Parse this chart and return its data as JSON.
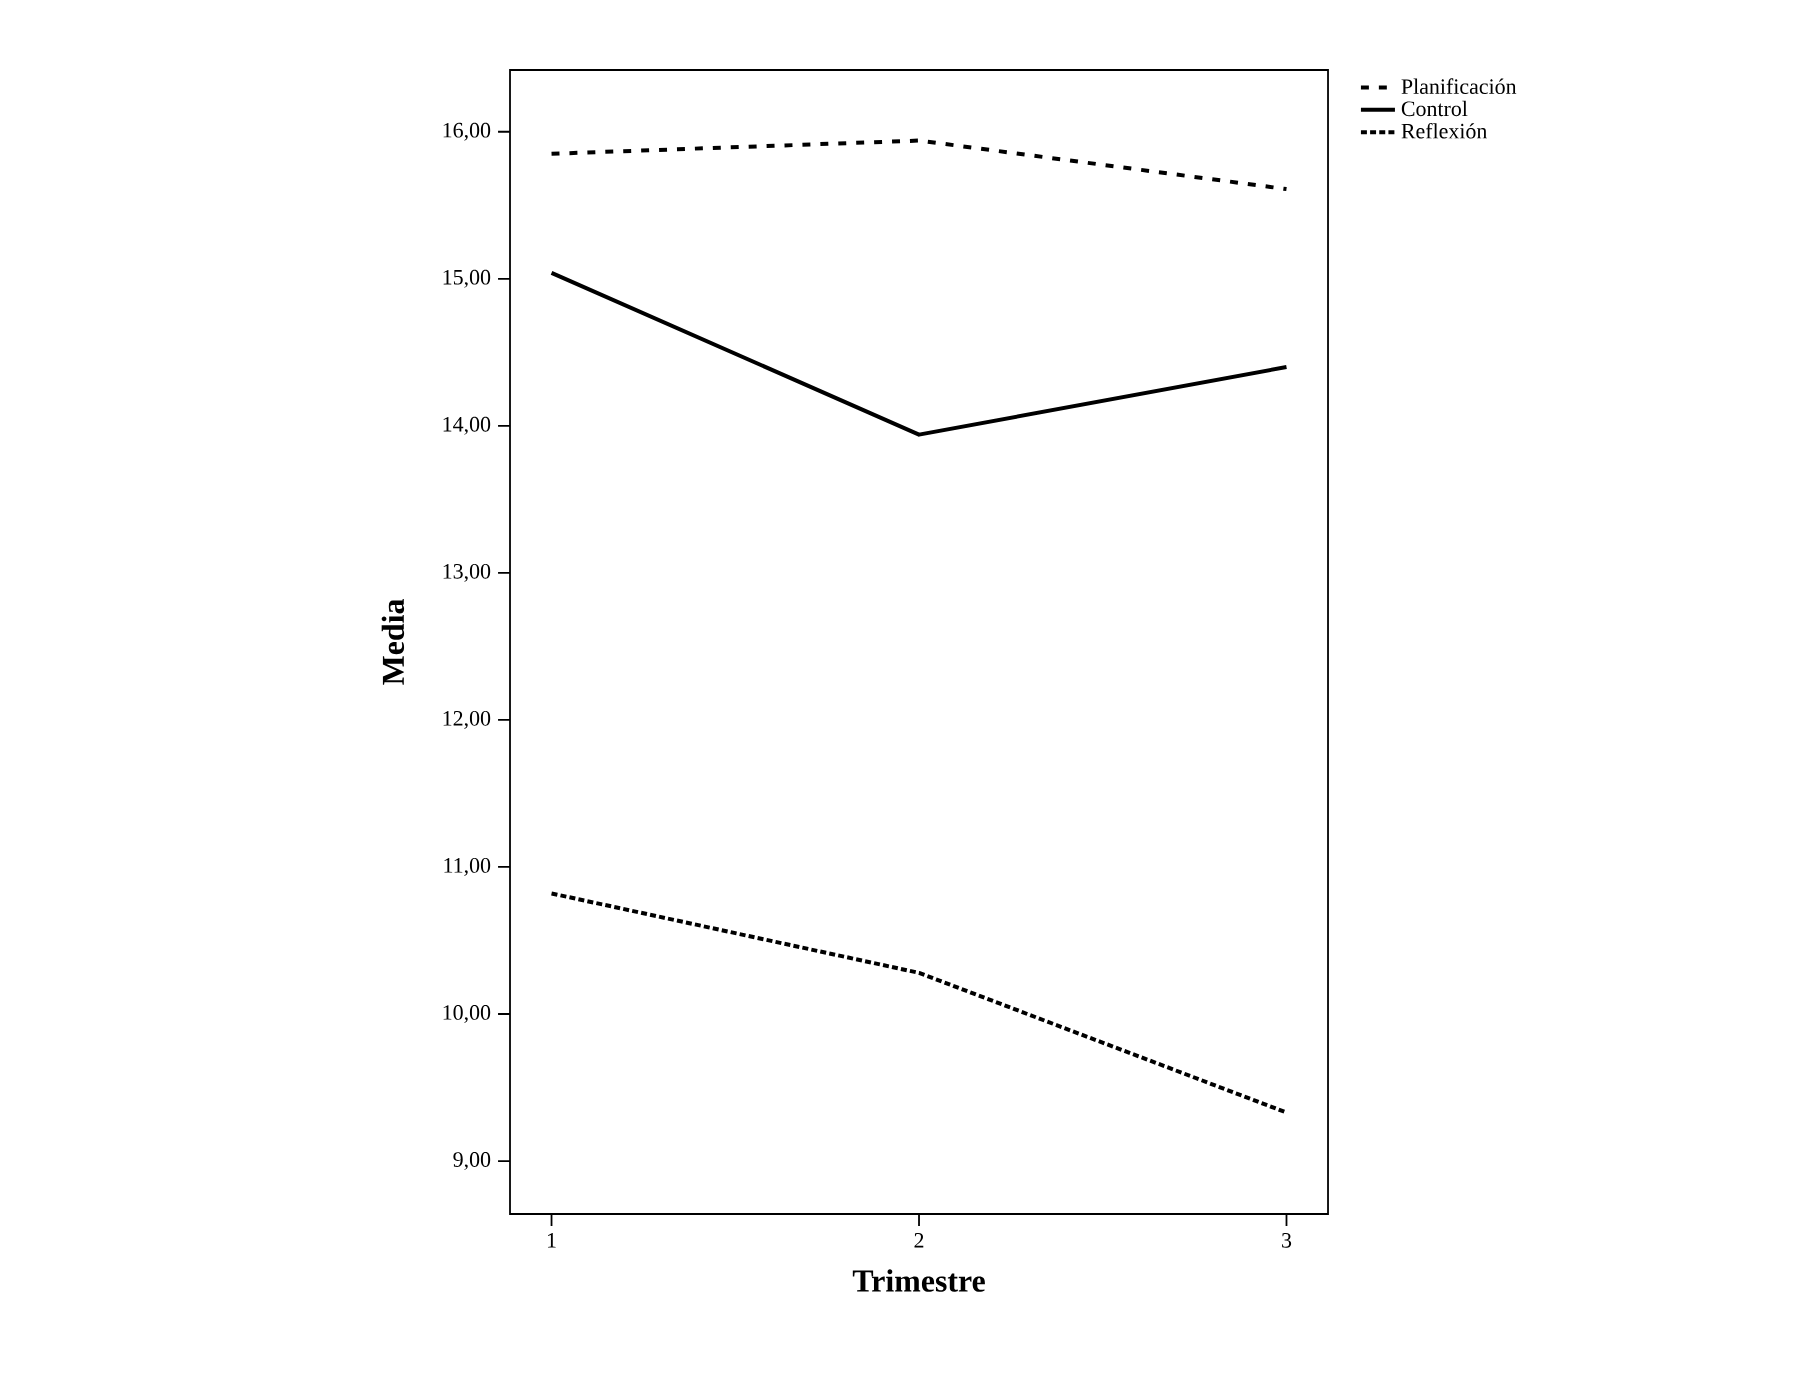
{
  "chart_data": {
    "type": "line",
    "xlabel": "Trimestre",
    "ylabel": "Media",
    "x": [
      1,
      2,
      3
    ],
    "series": [
      {
        "name": "Planificación",
        "color": "#000000",
        "line_style": "dashed",
        "values": [
          15.85,
          15.94,
          15.61
        ]
      },
      {
        "name": "Control",
        "color": "#000000",
        "line_style": "solid",
        "values": [
          15.04,
          13.94,
          14.4
        ]
      },
      {
        "name": "Reflexión",
        "color": "#000000",
        "line_style": "dotted",
        "values": [
          10.82,
          10.28,
          9.33
        ]
      }
    ],
    "xlim": [
      0.887,
      3.113
    ],
    "xticks": [
      1,
      2,
      3
    ],
    "ylim": [
      8.64,
      16.42
    ],
    "yticks": [
      {
        "value": 9,
        "label": "9,00"
      },
      {
        "value": 10,
        "label": "10,00"
      },
      {
        "value": 11,
        "label": "11,00"
      },
      {
        "value": 12,
        "label": "12,00"
      },
      {
        "value": 13,
        "label": "13,00"
      },
      {
        "value": 14,
        "label": "14,00"
      },
      {
        "value": 15,
        "label": "15,00"
      },
      {
        "value": 16,
        "label": "16,00"
      }
    ],
    "grid": false,
    "legend": "top right",
    "marker": "none"
  }
}
